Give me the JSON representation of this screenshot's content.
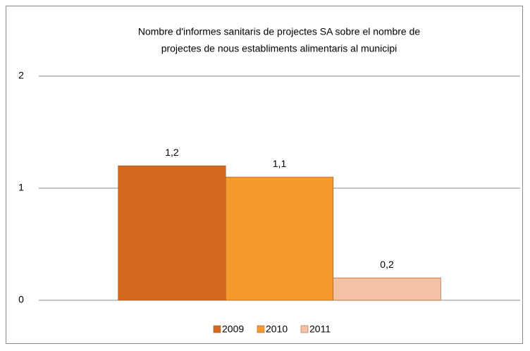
{
  "chart_data": {
    "type": "bar",
    "title": [
      "Nombre d'informes sanitaris de projectes SA sobre el nombre de",
      "projectes de nous establiments alimentaris al municipi"
    ],
    "categories": [
      null
    ],
    "series": [
      {
        "name": "2009",
        "color": "#d2691e",
        "values": [
          1.2
        ],
        "value_labels": [
          "1,2"
        ]
      },
      {
        "name": "2010",
        "color": "#f59a2c",
        "values": [
          1.1
        ],
        "value_labels": [
          "1,1"
        ]
      },
      {
        "name": "2011",
        "color": "#f4c3a6",
        "values": [
          0.2
        ],
        "value_labels": [
          "0,2"
        ]
      }
    ],
    "ylim": [
      0,
      2
    ],
    "yticks": [
      0,
      1,
      2
    ],
    "grid": true,
    "legend": "bottom"
  }
}
